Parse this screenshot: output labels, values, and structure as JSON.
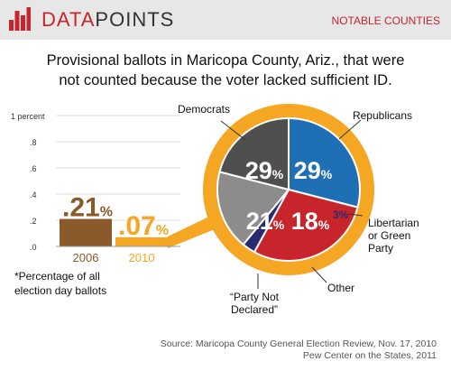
{
  "header": {
    "brand_part1": "DATA",
    "brand_part2": "POINTS",
    "section_label": "NOTABLE COUNTIES",
    "logo_icon": "bar-chart-logo-icon"
  },
  "title": {
    "line1": "Provisional ballots in Maricopa County, Ariz., that were",
    "line2": "not counted because the voter lacked sufficient ID."
  },
  "chart_data": [
    {
      "type": "bar",
      "categories": [
        "2006",
        "2010"
      ],
      "values": [
        0.21,
        0.07
      ],
      "value_labels": [
        ".21",
        ".07"
      ],
      "value_unit": "%",
      "ylim": [
        0,
        1
      ],
      "yticks": [
        0,
        0.2,
        0.4,
        0.6,
        0.8,
        1
      ],
      "ytick_labels": [
        ".0",
        ".2",
        ".4",
        ".6",
        ".8",
        "1 percent"
      ],
      "colors": [
        "#8b5a2b",
        "#f5a623"
      ],
      "footnote_line1": "*Percentage of all",
      "footnote_line2": "election day ballots"
    },
    {
      "type": "pie",
      "slices": [
        {
          "label": "Democrats",
          "value": 29,
          "value_label": "29",
          "color": "#1f6fb5"
        },
        {
          "label": "Republicans",
          "value": 29,
          "value_label": "29",
          "color": "#c8242b"
        },
        {
          "label_lines": [
            "Libertarian",
            "or Green",
            "Party"
          ],
          "value": 3,
          "value_label": "3%",
          "color": "#2a2a6e"
        },
        {
          "label": "Other",
          "value": 18,
          "value_label": "18",
          "color": "#8c8c8c"
        },
        {
          "label_lines": [
            "“Party Not",
            "Declared”"
          ],
          "value": 21,
          "value_label": "21",
          "color": "#4f4f4f"
        }
      ],
      "value_unit": "%",
      "ring_color": "#f5a623"
    }
  ],
  "source": {
    "line1": "Source: Maricopa County General Election Review, Nov. 17, 2010",
    "line2": "Pew Center on the States, 2011"
  }
}
